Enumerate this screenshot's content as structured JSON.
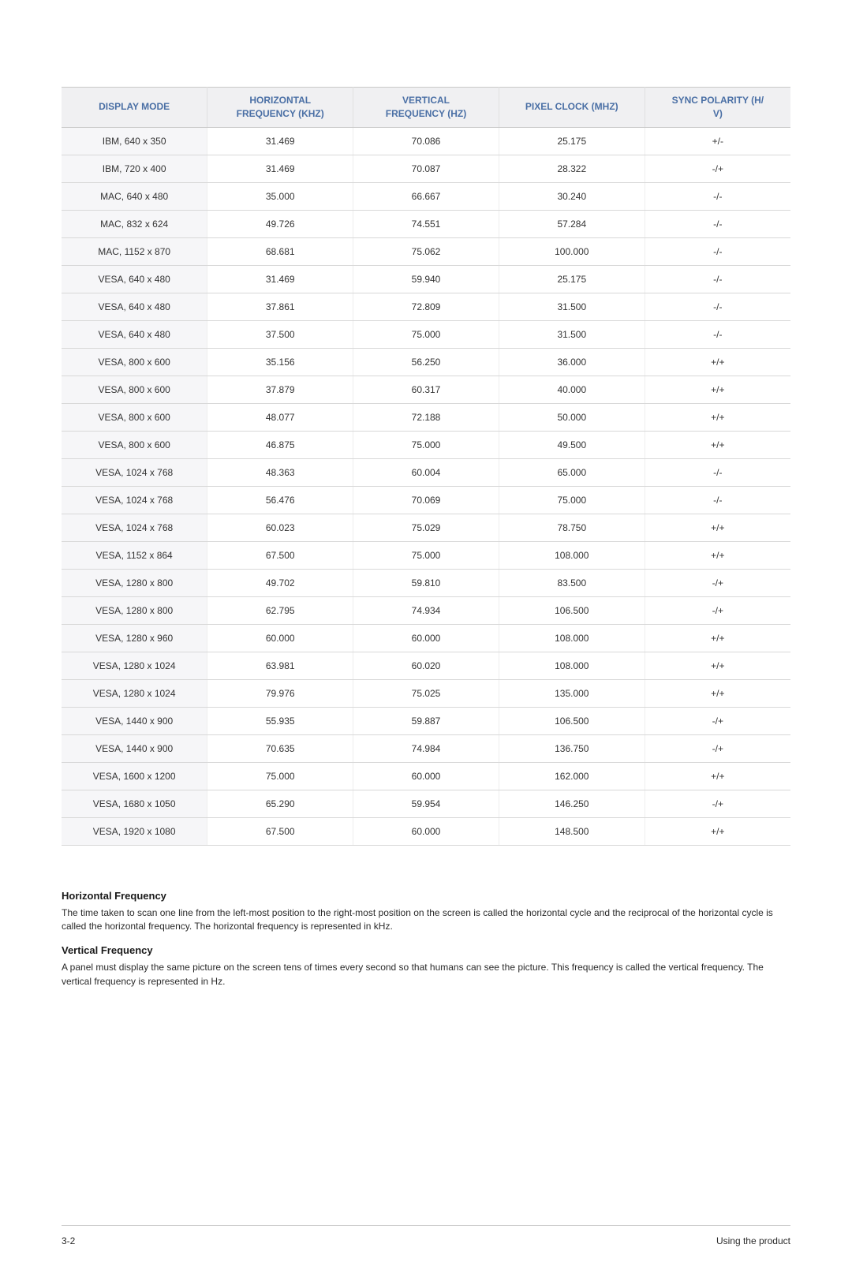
{
  "table": {
    "columns": [
      "DISPLAY MODE",
      "HORIZONTAL FREQUENCY (KHZ)",
      "VERTICAL FREQUENCY (HZ)",
      "PIXEL CLOCK (MHZ)",
      "SYNC POLARITY (H/V)"
    ],
    "header_color": "#4a6fa5",
    "header_bg": "#f0f0f2",
    "header_fontsize": 12,
    "cell_fontsize": 12,
    "cell_color": "#333333",
    "row_bg": "#ffffff",
    "first_col_bg": "#f6f6f8",
    "border_color": "#d8d8d8",
    "col_widths_pct": [
      20,
      20,
      20,
      20,
      20
    ],
    "rows": [
      [
        "IBM, 640 x 350",
        "31.469",
        "70.086",
        "25.175",
        "+/-"
      ],
      [
        "IBM, 720 x 400",
        "31.469",
        "70.087",
        "28.322",
        "-/+"
      ],
      [
        "MAC, 640 x 480",
        "35.000",
        "66.667",
        "30.240",
        "-/-"
      ],
      [
        "MAC, 832 x 624",
        "49.726",
        "74.551",
        "57.284",
        "-/-"
      ],
      [
        "MAC, 1152 x 870",
        "68.681",
        "75.062",
        "100.000",
        "-/-"
      ],
      [
        "VESA, 640 x 480",
        "31.469",
        "59.940",
        "25.175",
        "-/-"
      ],
      [
        "VESA, 640 x 480",
        "37.861",
        "72.809",
        "31.500",
        "-/-"
      ],
      [
        "VESA, 640 x 480",
        "37.500",
        "75.000",
        "31.500",
        "-/-"
      ],
      [
        "VESA, 800 x 600",
        "35.156",
        "56.250",
        "36.000",
        "+/+"
      ],
      [
        "VESA, 800 x 600",
        "37.879",
        "60.317",
        "40.000",
        "+/+"
      ],
      [
        "VESA, 800 x 600",
        "48.077",
        "72.188",
        "50.000",
        "+/+"
      ],
      [
        "VESA, 800 x 600",
        "46.875",
        "75.000",
        "49.500",
        "+/+"
      ],
      [
        "VESA, 1024 x 768",
        "48.363",
        "60.004",
        "65.000",
        "-/-"
      ],
      [
        "VESA, 1024 x 768",
        "56.476",
        "70.069",
        "75.000",
        "-/-"
      ],
      [
        "VESA, 1024 x 768",
        "60.023",
        "75.029",
        "78.750",
        "+/+"
      ],
      [
        "VESA, 1152 x 864",
        "67.500",
        "75.000",
        "108.000",
        "+/+"
      ],
      [
        "VESA, 1280 x 800",
        "49.702",
        "59.810",
        "83.500",
        "-/+"
      ],
      [
        "VESA, 1280 x 800",
        "62.795",
        "74.934",
        "106.500",
        "-/+"
      ],
      [
        "VESA, 1280 x 960",
        "60.000",
        "60.000",
        "108.000",
        "+/+"
      ],
      [
        "VESA, 1280 x 1024",
        "63.981",
        "60.020",
        "108.000",
        "+/+"
      ],
      [
        "VESA, 1280 x 1024",
        "79.976",
        "75.025",
        "135.000",
        "+/+"
      ],
      [
        "VESA, 1440 x 900",
        "55.935",
        "59.887",
        "106.500",
        "-/+"
      ],
      [
        "VESA, 1440 x 900",
        "70.635",
        "74.984",
        "136.750",
        "-/+"
      ],
      [
        "VESA, 1600 x 1200",
        "75.000",
        "60.000",
        "162.000",
        "+/+"
      ],
      [
        "VESA, 1680 x 1050",
        "65.290",
        "59.954",
        "146.250",
        "-/+"
      ],
      [
        "VESA, 1920 x 1080",
        "67.500",
        "60.000",
        "148.500",
        "+/+"
      ]
    ]
  },
  "notes": {
    "hfreq_title": "Horizontal Frequency",
    "hfreq_body": "The time taken to scan one line from the left-most position to the right-most position on the screen is called the horizontal cycle and the reciprocal of the horizontal cycle is called the horizontal frequency. The horizontal frequency is represented in kHz.",
    "vfreq_title": "Vertical Frequency",
    "vfreq_body": "A panel must display the same picture on the screen tens of times every second so that humans can see the picture. This frequency is called the vertical frequency. The vertical frequency is represented in Hz."
  },
  "footer": {
    "left": "3-2",
    "right": "Using the product"
  }
}
